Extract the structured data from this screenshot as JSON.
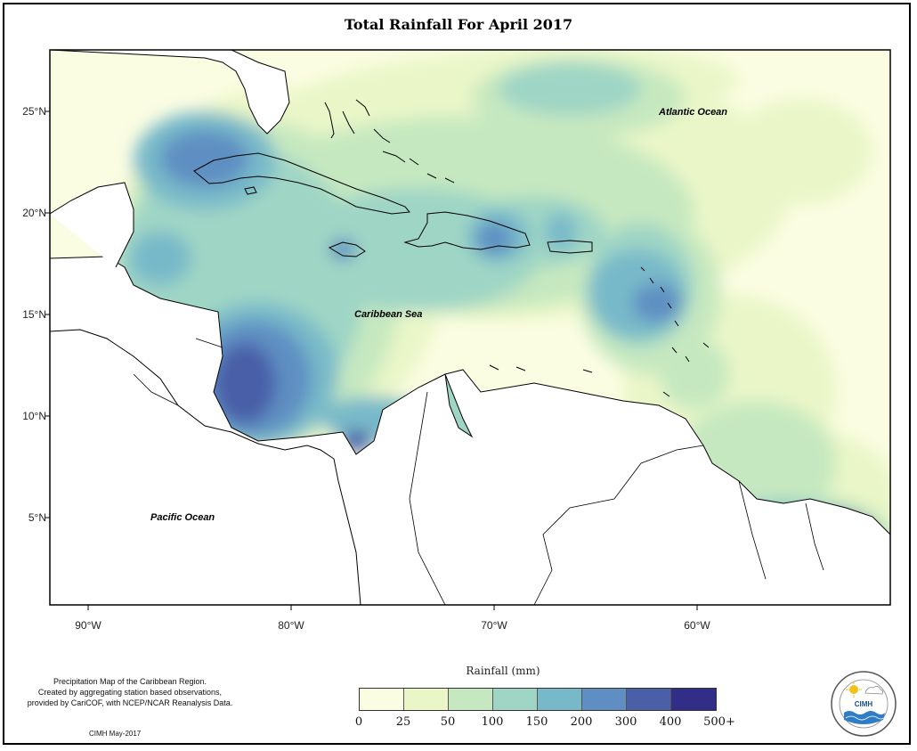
{
  "title": "Total Rainfall For April 2017",
  "lat_labels": [
    "25°N",
    "20°N",
    "15°N",
    "10°N",
    "5°N"
  ],
  "lon_labels": [
    "90°W",
    "80°W",
    "70°W",
    "60°W"
  ],
  "region_labels": {
    "atlantic": "Atlantic Ocean",
    "caribbean": "Caribbean Sea",
    "pacific": "Pacific Ocean"
  },
  "caption_lines": [
    "Precipitation Map of the Caribbean Region.",
    "Created by aggregating station based observations,",
    "provided by CariCOF, with NCEP/NCAR Reanalysis Data."
  ],
  "credit": "CIMH May-2017",
  "legend": {
    "title": "Rainfall (mm)",
    "ticks": [
      "0",
      "25",
      "50",
      "100",
      "150",
      "200",
      "300",
      "400",
      "500+"
    ],
    "colors": [
      "#fbfde2",
      "#eaf6c8",
      "#c6e8c0",
      "#9fd5c5",
      "#78b9c9",
      "#5f8fc2",
      "#4a5fa7",
      "#322d86",
      "#0f1b4d"
    ]
  },
  "logo": {
    "text": "CIMH",
    "icon": "cimh-logo-icon"
  }
}
